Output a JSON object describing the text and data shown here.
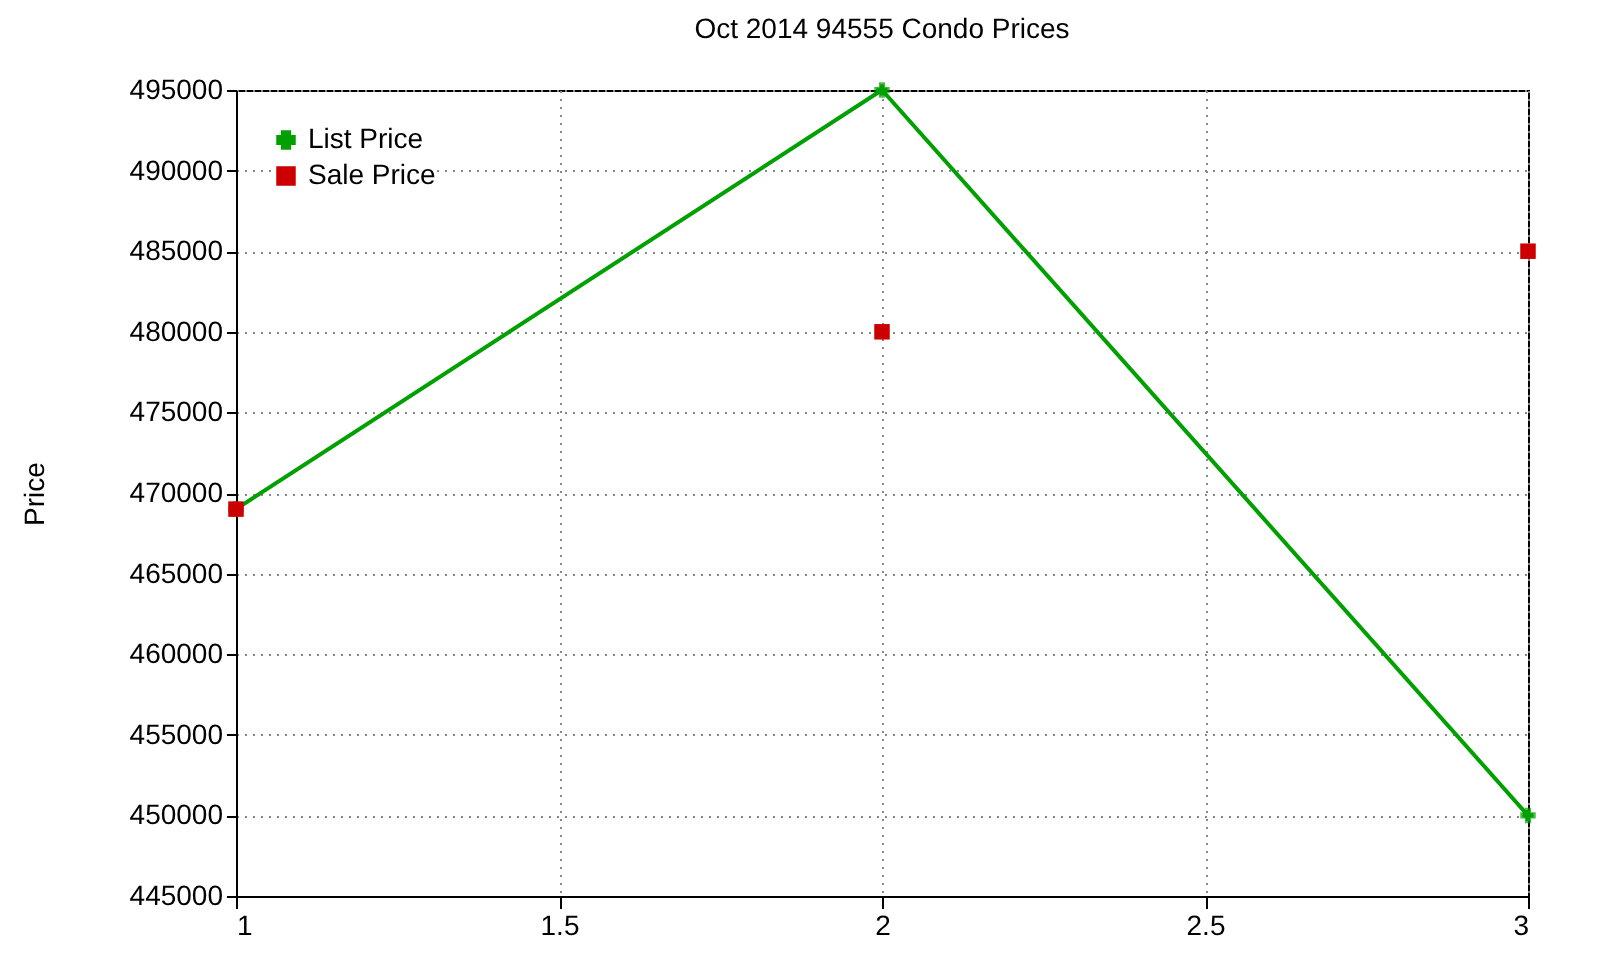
{
  "chart_data": {
    "type": "line",
    "title": "Oct 2014 94555 Condo Prices",
    "ylabel": "Price",
    "x": [
      1,
      2,
      3
    ],
    "series": [
      {
        "name": "List Price",
        "color": "#00a000",
        "values": [
          469000,
          495000,
          450000
        ],
        "marker": "cross"
      },
      {
        "name": "Sale Price",
        "type": "scatter",
        "color": "#cc0000",
        "values": [
          469000,
          480000,
          485000
        ],
        "marker": "square"
      }
    ],
    "xlim": [
      1,
      3
    ],
    "xticks": [
      1,
      1.5,
      2,
      2.5,
      3
    ],
    "ylim": [
      445000,
      495000
    ],
    "yticks": [
      445000,
      450000,
      455000,
      460000,
      465000,
      470000,
      475000,
      480000,
      485000,
      490000,
      495000
    ],
    "grid": true,
    "legend": "top left",
    "line_style": "solid"
  }
}
